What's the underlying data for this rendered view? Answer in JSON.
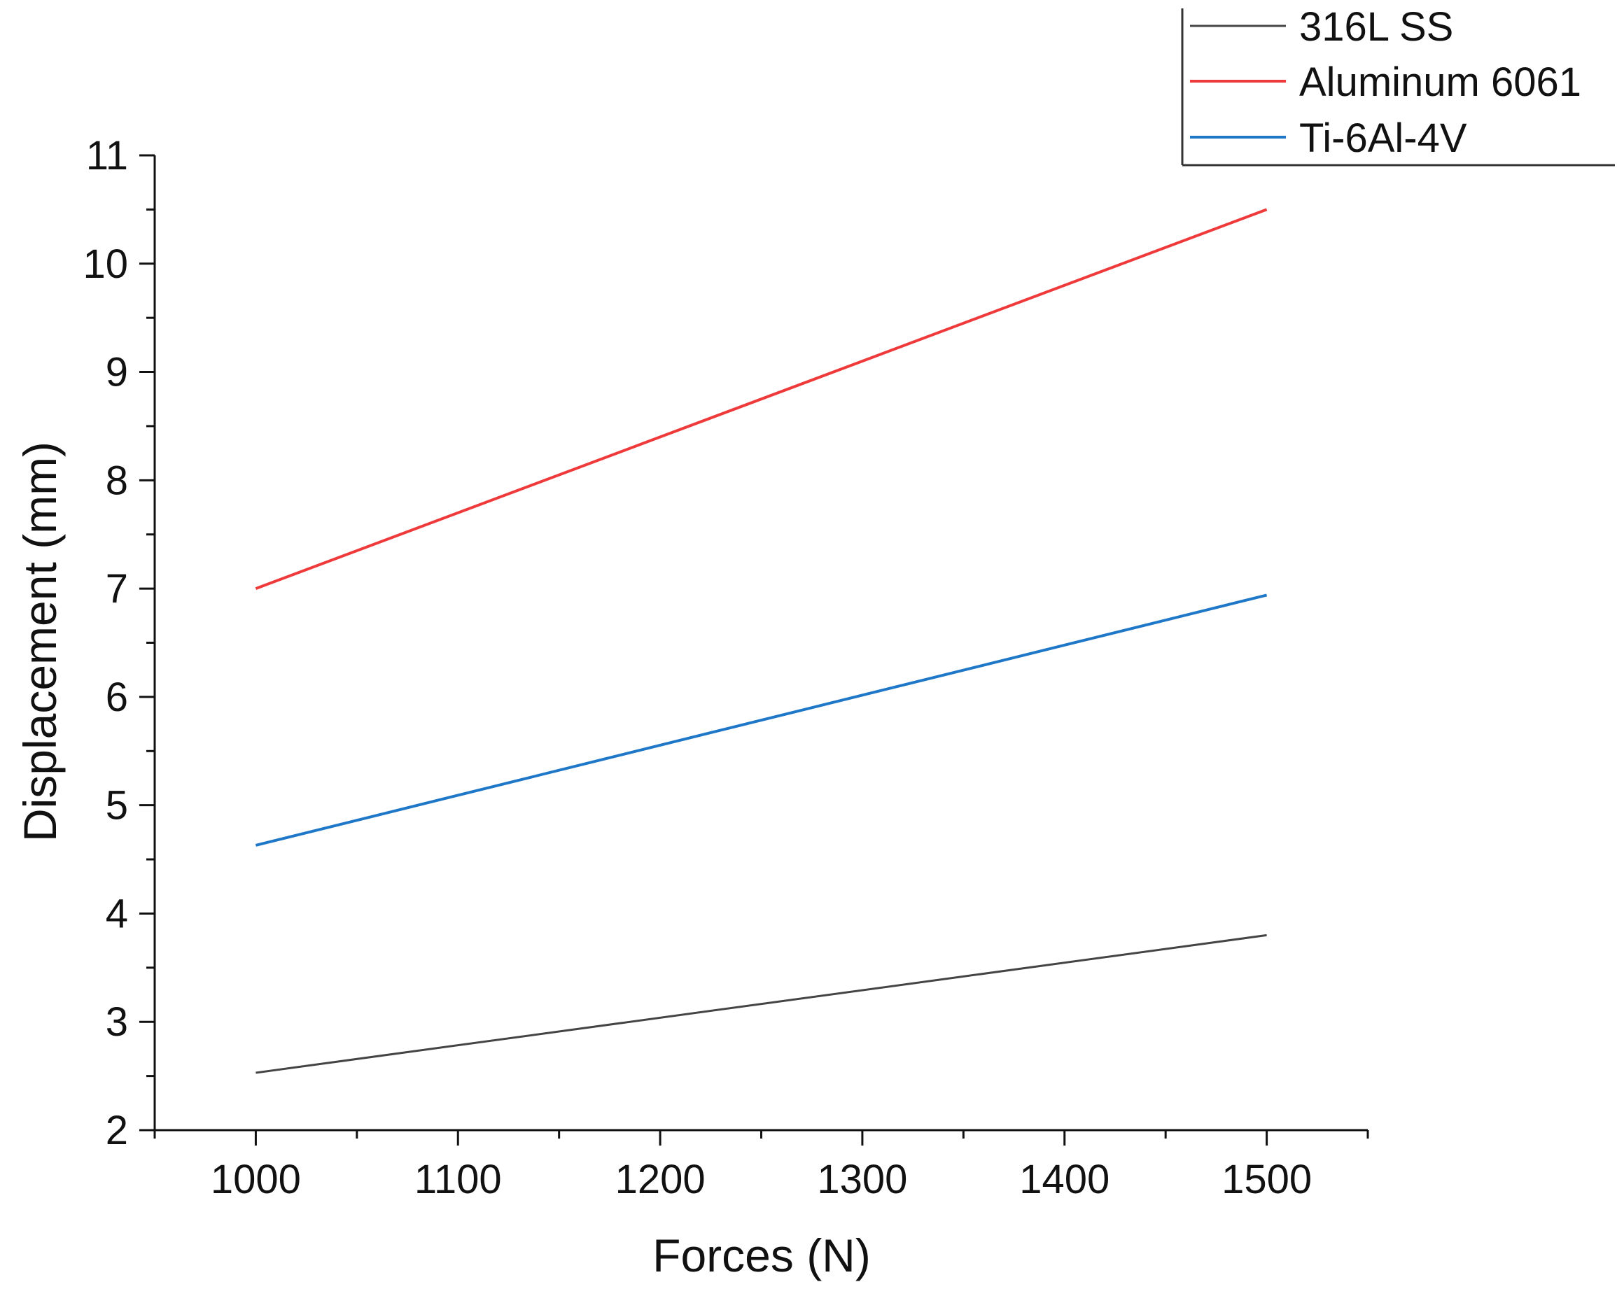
{
  "chart_data": {
    "type": "line",
    "title": "",
    "xlabel": "Forces (N)",
    "ylabel": "Displacement (mm)",
    "x": [
      1000,
      1500
    ],
    "xlim": [
      950,
      1550
    ],
    "ylim": [
      2,
      11
    ],
    "x_ticks": [
      "1000",
      "1100",
      "1200",
      "1300",
      "1400",
      "1500"
    ],
    "y_ticks": [
      "2",
      "3",
      "4",
      "5",
      "6",
      "7",
      "8",
      "9",
      "10",
      "11"
    ],
    "grid": false,
    "legend_position": "top-right",
    "series": [
      {
        "name": "316L SS",
        "color": "#444444",
        "values": [
          2.53,
          3.8
        ]
      },
      {
        "name": "Aluminum 6061",
        "color": "#ee3a3a",
        "values": [
          7.0,
          10.5
        ]
      },
      {
        "name": "Ti-6Al-4V",
        "color": "#1f77c8",
        "values": [
          4.63,
          6.94
        ]
      }
    ]
  }
}
